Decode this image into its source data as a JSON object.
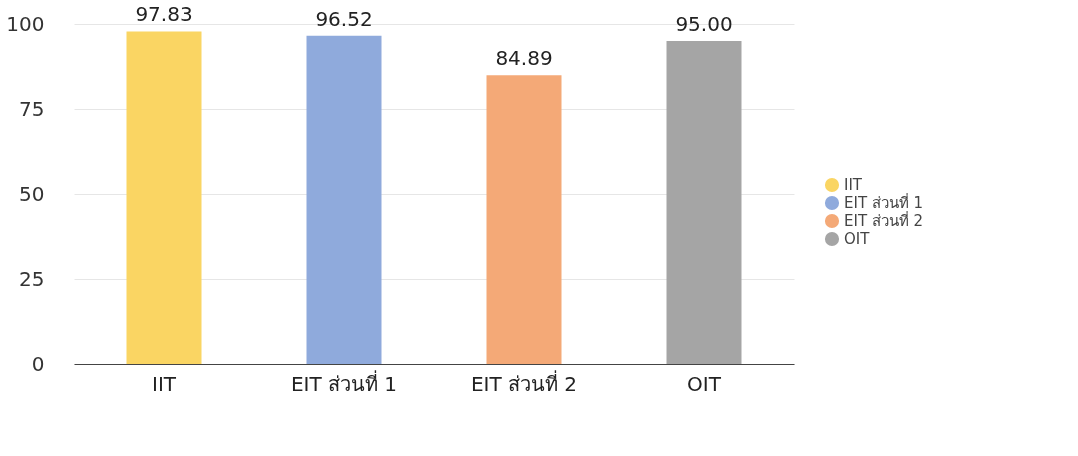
{
  "chart_data": {
    "type": "bar",
    "categories": [
      "IIT",
      "EIT ส่วนที่ 1",
      "EIT ส่วนที่ 2",
      "OIT"
    ],
    "series": [
      {
        "name": "IIT",
        "color": "#fad563",
        "values": [
          97.83,
          null,
          null,
          null
        ],
        "value_labels": [
          "97.83",
          null,
          null,
          null
        ]
      },
      {
        "name": "EIT ส่วนที่ 1",
        "color": "#8faadc",
        "values": [
          null,
          96.52,
          null,
          null
        ],
        "value_labels": [
          null,
          "96.52",
          null,
          null
        ]
      },
      {
        "name": "EIT ส่วนที่ 2",
        "color": "#f4a977",
        "values": [
          null,
          null,
          84.89,
          null
        ],
        "value_labels": [
          null,
          null,
          "84.89",
          null
        ]
      },
      {
        "name": "OIT",
        "color": "#a5a5a5",
        "values": [
          null,
          null,
          null,
          95.0
        ],
        "value_labels": [
          null,
          null,
          null,
          "95.00"
        ]
      }
    ],
    "ylim": [
      0,
      100
    ],
    "yticks": [
      0,
      25,
      50,
      75,
      100
    ],
    "grid": "y",
    "legend": "right"
  }
}
